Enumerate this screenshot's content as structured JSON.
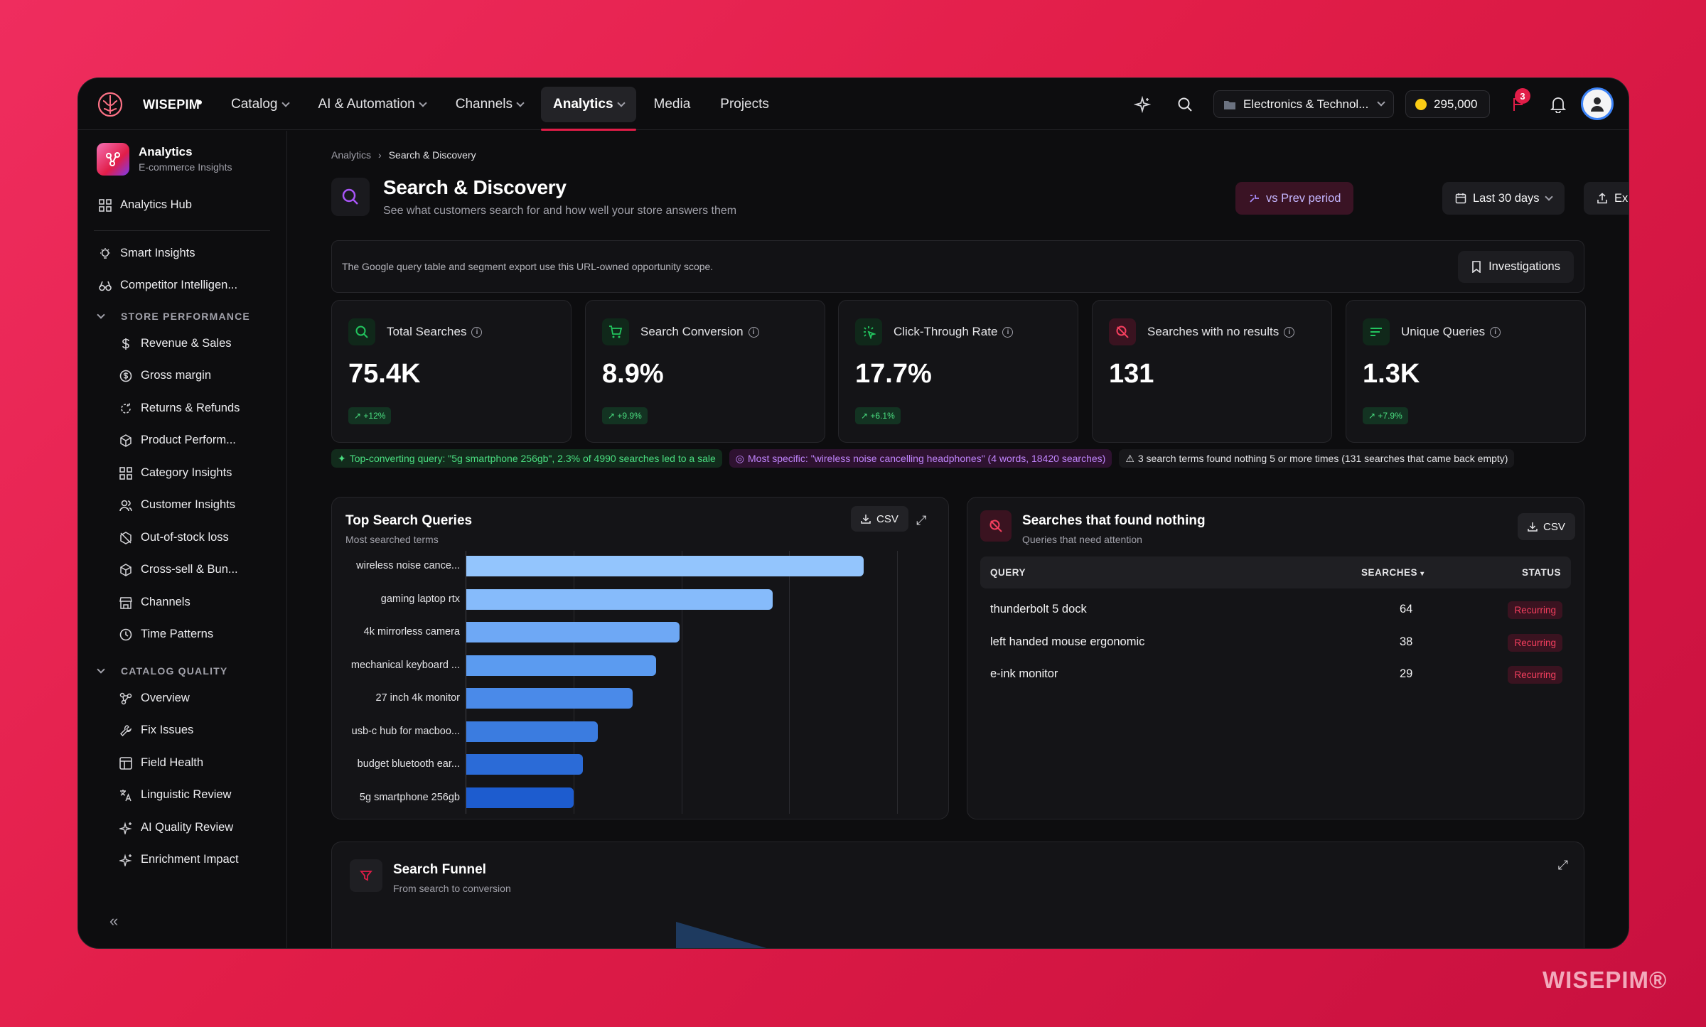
{
  "brand": "WISEPIM",
  "nav": {
    "items": [
      {
        "label": "Catalog"
      },
      {
        "label": "AI & Automation"
      },
      {
        "label": "Channels"
      },
      {
        "label": "Analytics"
      },
      {
        "label": "Media"
      },
      {
        "label": "Projects"
      }
    ],
    "active": "Analytics"
  },
  "topbar": {
    "workspace": "Electronics & Technol...",
    "credits": "295,000",
    "alert_count": "3"
  },
  "sidebar": {
    "app_title": "Analytics",
    "app_subtitle": "E-commerce Insights",
    "hub": "Analytics Hub",
    "smart_insights": "Smart Insights",
    "competitor": "Competitor Intelligen...",
    "store_section": "STORE PERFORMANCE",
    "store_items": [
      "Revenue & Sales",
      "Gross margin",
      "Returns & Refunds",
      "Product Perform...",
      "Category Insights",
      "Customer Insights",
      "Out-of-stock loss",
      "Cross-sell & Bun...",
      "Channels",
      "Time Patterns"
    ],
    "catalog_section": "CATALOG QUALITY",
    "catalog_items": [
      "Overview",
      "Fix Issues",
      "Field Health",
      "Linguistic Review",
      "AI Quality Review",
      "Enrichment Impact"
    ]
  },
  "breadcrumb": {
    "parent": "Analytics",
    "current": "Search & Discovery"
  },
  "page": {
    "title": "Search & Discovery",
    "subtitle": "See what customers search for and how well your store answers them",
    "compare_label": "vs Prev period",
    "range_label": "Last 30 days",
    "export_label": "Export"
  },
  "scope": {
    "text": "The Google query table and segment export use this URL-owned opportunity scope.",
    "investigations_label": "Investigations"
  },
  "kpis": [
    {
      "label": "Total Searches",
      "value": "75.4K",
      "delta": "+12%"
    },
    {
      "label": "Search Conversion",
      "value": "8.9%",
      "delta": "+9.9%"
    },
    {
      "label": "Click-Through Rate",
      "value": "17.7%",
      "delta": "+6.1%"
    },
    {
      "label": "Searches with no results",
      "value": "131",
      "delta": ""
    },
    {
      "label": "Unique Queries",
      "value": "1.3K",
      "delta": "+7.9%"
    }
  ],
  "insights": {
    "top_converting": "Top-converting query: \"5g smartphone 256gb\", 2.3% of 4990 searches led to a sale",
    "most_specific": "Most specific: \"wireless noise cancelling headphones\" (4 words, 18420 searches)",
    "no_results": "3 search terms found nothing 5 or more times (131 searches that came back empty)"
  },
  "top_queries": {
    "title": "Top Search Queries",
    "subtitle": "Most searched terms",
    "csv_label": "CSV"
  },
  "chart_data": {
    "type": "bar",
    "orientation": "horizontal",
    "categories": [
      "wireless noise cance...",
      "gaming laptop rtx",
      "4k mirrorless camera",
      "mechanical keyboard ...",
      "27 inch 4k monitor",
      "usb-c hub for macboo...",
      "budget bluetooth ear...",
      "5g smartphone 256gb"
    ],
    "values": [
      18420,
      14200,
      9900,
      8800,
      7700,
      6100,
      5400,
      4990
    ],
    "xlim": [
      0,
      20000
    ],
    "grid": true,
    "colors": [
      "#93c5fd",
      "#86bbfb",
      "#6ea8f5",
      "#5b9bf0",
      "#4a8ae9",
      "#3b7ce0",
      "#2b6bd7",
      "#1d5ccf"
    ]
  },
  "no_results": {
    "title": "Searches that found nothing",
    "subtitle": "Queries that need attention",
    "csv_label": "CSV",
    "col_query": "QUERY",
    "col_searches": "SEARCHES",
    "col_status": "STATUS",
    "rows": [
      {
        "query": "thunderbolt 5 dock",
        "searches": "64",
        "status": "Recurring"
      },
      {
        "query": "left handed mouse ergonomic",
        "searches": "38",
        "status": "Recurring"
      },
      {
        "query": "e-ink monitor",
        "searches": "29",
        "status": "Recurring"
      }
    ]
  },
  "funnel": {
    "title": "Search Funnel",
    "subtitle": "From search to conversion"
  },
  "watermark": "WISEPIM®"
}
